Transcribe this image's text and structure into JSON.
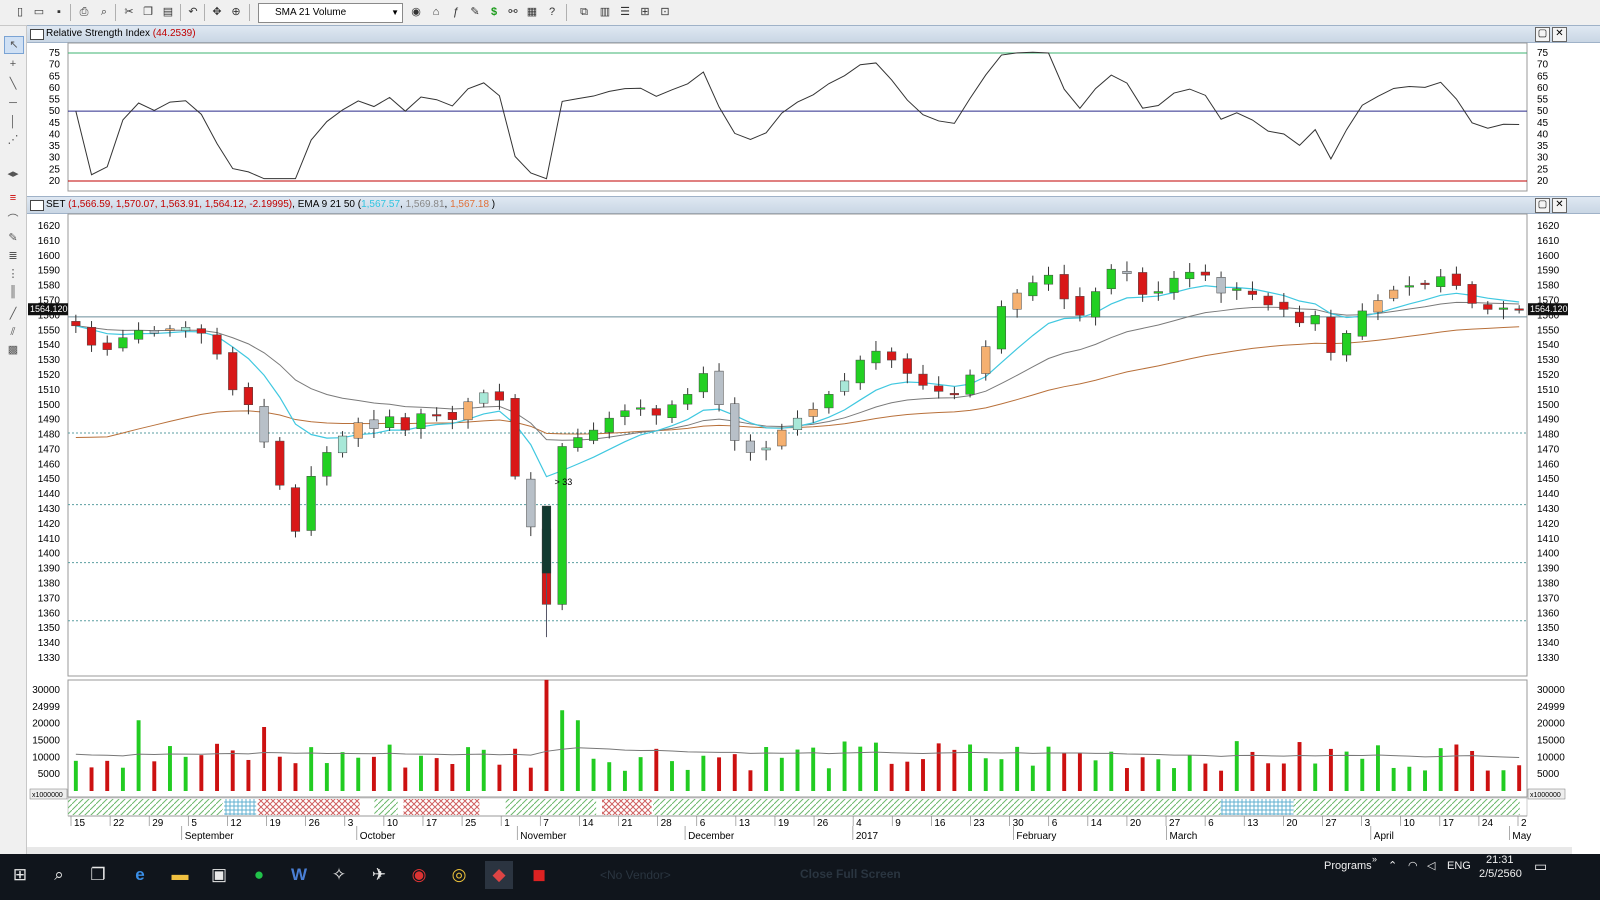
{
  "toolbar": {
    "indicator_select": "SMA 21 Volume",
    "buttons": [
      "new-icon",
      "open-icon",
      "save-icon",
      "print-icon",
      "print-preview-icon",
      "cut-icon",
      "copy-icon",
      "paste-icon",
      "undo-icon",
      "crosshair-icon",
      "zoom-icon",
      "indicator-icon",
      "function-icon",
      "draw-icon",
      "dollar-icon",
      "binoculars-icon",
      "calculator-icon",
      "help-icon",
      "windows-icon",
      "layout-icon",
      "rows-icon",
      "grid-icon",
      "frame-icon"
    ]
  },
  "rsi_panel": {
    "title": "Relative Strength Index",
    "value": "(44.2539)",
    "ticks": [
      "75",
      "70",
      "65",
      "60",
      "55",
      "50",
      "45",
      "40",
      "35",
      "30",
      "25",
      "20"
    ]
  },
  "price_panel": {
    "symbol": "SET",
    "ohlc": "(1,566.59, 1,570.07, 1,563.91, 1,564.12, -2.19995)",
    "ema_label": "EMA 9 21 50 (",
    "ema_values": [
      "1,567.57",
      "1,569.81",
      "1,567.18"
    ],
    "ema_close": ")",
    "last_price": "1564.120",
    "ticks": [
      "1620",
      "1610",
      "1600",
      "1590",
      "1580",
      "1570",
      "1560",
      "1550",
      "1540",
      "1530",
      "1520",
      "1510",
      "1500",
      "1490",
      "1480",
      "1470",
      "1460",
      "1450",
      "1440",
      "1430",
      "1420",
      "1410",
      "1400",
      "1390",
      "1380",
      "1370",
      "1360",
      "1350",
      "1340",
      "1330"
    ],
    "annotation": "> 33"
  },
  "volume_panel": {
    "ticks": [
      "30000",
      "24999",
      "20000",
      "15000",
      "10000",
      "5000"
    ],
    "multiplier": "x1000000"
  },
  "date_axis": {
    "days": [
      "15",
      "22",
      "29",
      "5",
      "12",
      "19",
      "26",
      "3",
      "10",
      "17",
      "25",
      "1",
      "7",
      "14",
      "21",
      "28",
      "6",
      "13",
      "19",
      "26",
      "4",
      "9",
      "16",
      "23",
      "30",
      "6",
      "14",
      "20",
      "27",
      "6",
      "13",
      "20",
      "27",
      "3",
      "10",
      "17",
      "24",
      "2"
    ],
    "months": [
      "September",
      "October",
      "November",
      "December",
      "2017",
      "February",
      "March",
      "April",
      "May"
    ]
  },
  "chart_data": {
    "type": "candlestick",
    "series": [
      {
        "name": "SET",
        "close_approx": [
          1553,
          1540,
          1537,
          1545,
          1550,
          1548,
          1551,
          1552,
          1548,
          1534,
          1510,
          1500,
          1475,
          1446,
          1415,
          1452,
          1468,
          1479,
          1488,
          1484,
          1492,
          1483,
          1494,
          1493,
          1490,
          1502,
          1508,
          1503,
          1452,
          1418,
          1366,
          1472,
          1478,
          1483,
          1491,
          1496,
          1498,
          1493,
          1500,
          1507,
          1521,
          1500,
          1476,
          1468,
          1471,
          1483,
          1491,
          1497,
          1507,
          1516,
          1530,
          1536,
          1530,
          1521,
          1513,
          1509,
          1507,
          1520,
          1539,
          1566,
          1575,
          1582,
          1587,
          1571,
          1560,
          1576,
          1591,
          1588,
          1574,
          1576,
          1585,
          1589,
          1587,
          1575,
          1578,
          1574,
          1567,
          1564,
          1555,
          1560,
          1535,
          1548,
          1563,
          1570,
          1577,
          1580,
          1581,
          1586,
          1580,
          1568,
          1564,
          1565,
          1564
        ]
      }
    ],
    "ema_names": [
      "EMA 9",
      "EMA 21",
      "EMA 50"
    ],
    "rsi_last": 44.2539,
    "y_range": [
      1330,
      1620
    ],
    "volume_range_x1000000": [
      0,
      30000
    ]
  },
  "taskbar": {
    "programs_label": "Programs",
    "lang": "ENG",
    "time": "21:31",
    "date": "2/5/2560",
    "ghost_vendor": "<No Vendor>",
    "ghost_button": "Close Full Screen"
  }
}
